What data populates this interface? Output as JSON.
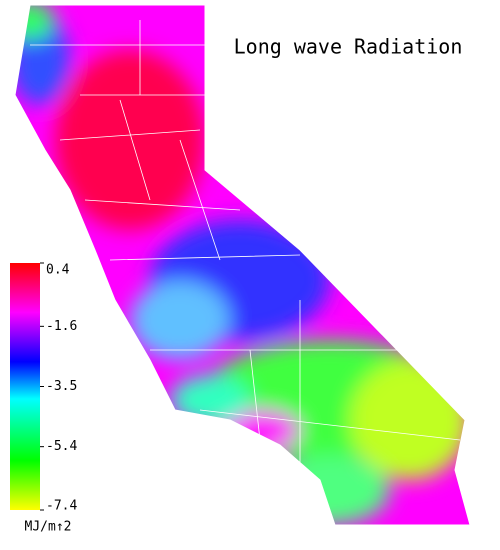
{
  "title": "Long wave Radiation",
  "colorbar": {
    "lim": [
      -7.4,
      0.4
    ],
    "ticks": [
      0.4,
      -1.6,
      -3.5,
      -5.4,
      -7.4
    ],
    "unit": "MJ/m↑2"
  }
}
